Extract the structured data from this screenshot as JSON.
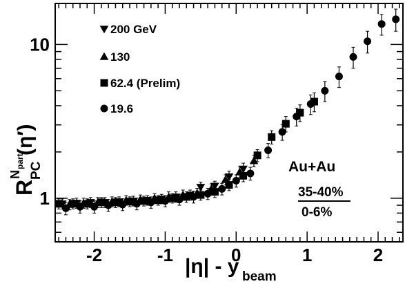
{
  "chart_data": {
    "type": "scatter",
    "title": "",
    "xlabel": "|η| - y",
    "xlabel_sub": "beam",
    "ylabel": "R",
    "ylabel_sub": "PC",
    "ylabel_sup": "N",
    "ylabel_sup_sub": "part",
    "ylabel_arg": "(η′)",
    "xlim": [
      -2.55,
      2.35
    ],
    "ylim": [
      0.52,
      18.5
    ],
    "yscale": "log",
    "grid": false,
    "legend_position": "top-left",
    "x_ticks": [
      {
        "value": -2,
        "label": "-2"
      },
      {
        "value": -1,
        "label": "-1"
      },
      {
        "value": 0,
        "label": "0"
      },
      {
        "value": 1,
        "label": "1"
      },
      {
        "value": 2,
        "label": "2"
      }
    ],
    "y_ticks": [
      {
        "value": 1,
        "label": "1"
      },
      {
        "value": 10,
        "label": "10"
      }
    ],
    "annotations": {
      "system": "Au+Au",
      "numerator": "35-40%",
      "denominator": "0-6%"
    },
    "series": [
      {
        "name": "200 GeV",
        "marker": "triangle-down",
        "points": [
          {
            "x": -2.45,
            "y": 0.92,
            "err": 0.07
          },
          {
            "x": -2.25,
            "y": 0.93,
            "err": 0.07
          },
          {
            "x": -2.05,
            "y": 0.94,
            "err": 0.07
          },
          {
            "x": -1.85,
            "y": 0.94,
            "err": 0.07
          },
          {
            "x": -1.65,
            "y": 0.95,
            "err": 0.07
          },
          {
            "x": -1.45,
            "y": 0.96,
            "err": 0.07
          },
          {
            "x": -1.25,
            "y": 0.97,
            "err": 0.07
          },
          {
            "x": -1.05,
            "y": 0.99,
            "err": 0.07
          },
          {
            "x": -0.85,
            "y": 1.02,
            "err": 0.08
          },
          {
            "x": -0.65,
            "y": 1.05,
            "err": 0.08
          },
          {
            "x": -0.5,
            "y": 1.18,
            "err": 0.09
          },
          {
            "x": -0.3,
            "y": 1.2,
            "err": 0.09
          },
          {
            "x": -0.1,
            "y": 1.38,
            "err": 0.12
          },
          {
            "x": 0.1,
            "y": 1.55,
            "err": 0.14
          }
        ]
      },
      {
        "name": "130",
        "marker": "triangle-up",
        "points": [
          {
            "x": -2.35,
            "y": 0.91,
            "err": 0.07
          },
          {
            "x": -2.15,
            "y": 0.93,
            "err": 0.07
          },
          {
            "x": -1.95,
            "y": 0.94,
            "err": 0.07
          },
          {
            "x": -1.75,
            "y": 0.95,
            "err": 0.07
          },
          {
            "x": -1.55,
            "y": 0.97,
            "err": 0.07
          },
          {
            "x": -1.35,
            "y": 0.98,
            "err": 0.07
          },
          {
            "x": -1.15,
            "y": 1.0,
            "err": 0.07
          },
          {
            "x": -0.95,
            "y": 1.02,
            "err": 0.08
          },
          {
            "x": -0.75,
            "y": 1.05,
            "err": 0.08
          },
          {
            "x": -0.55,
            "y": 1.08,
            "err": 0.08
          },
          {
            "x": -0.35,
            "y": 1.15,
            "err": 0.09
          },
          {
            "x": -0.15,
            "y": 1.32,
            "err": 0.1
          },
          {
            "x": 0.05,
            "y": 1.48,
            "err": 0.12
          },
          {
            "x": 0.25,
            "y": 1.75,
            "err": 0.15
          }
        ]
      },
      {
        "name": "62.4 (Prelim)",
        "marker": "square",
        "points": [
          {
            "x": -2.5,
            "y": 0.92,
            "err": 0.07
          },
          {
            "x": -2.3,
            "y": 0.92,
            "err": 0.07
          },
          {
            "x": -2.1,
            "y": 0.92,
            "err": 0.07
          },
          {
            "x": -1.9,
            "y": 0.94,
            "err": 0.07
          },
          {
            "x": -1.7,
            "y": 0.94,
            "err": 0.07
          },
          {
            "x": -1.5,
            "y": 0.95,
            "err": 0.07
          },
          {
            "x": -1.3,
            "y": 0.96,
            "err": 0.07
          },
          {
            "x": -1.1,
            "y": 0.97,
            "err": 0.07
          },
          {
            "x": -0.9,
            "y": 1.0,
            "err": 0.07
          },
          {
            "x": -0.7,
            "y": 1.02,
            "err": 0.08
          },
          {
            "x": -0.5,
            "y": 1.05,
            "err": 0.08
          },
          {
            "x": -0.3,
            "y": 1.1,
            "err": 0.09
          },
          {
            "x": -0.1,
            "y": 1.22,
            "err": 0.1
          },
          {
            "x": 0.1,
            "y": 1.4,
            "err": 0.12
          },
          {
            "x": 0.3,
            "y": 1.9,
            "err": 0.17
          },
          {
            "x": 0.5,
            "y": 2.5,
            "err": 0.25
          },
          {
            "x": 0.7,
            "y": 3.05,
            "err": 0.35
          },
          {
            "x": 0.9,
            "y": 3.6,
            "err": 0.45
          },
          {
            "x": 1.1,
            "y": 4.25,
            "err": 0.6
          }
        ]
      },
      {
        "name": "19.6",
        "marker": "circle",
        "points": [
          {
            "x": -2.4,
            "y": 0.86,
            "err": 0.08
          },
          {
            "x": -2.2,
            "y": 0.88,
            "err": 0.08
          },
          {
            "x": -2.0,
            "y": 0.88,
            "err": 0.08
          },
          {
            "x": -1.8,
            "y": 0.9,
            "err": 0.08
          },
          {
            "x": -1.6,
            "y": 0.91,
            "err": 0.08
          },
          {
            "x": -1.4,
            "y": 0.92,
            "err": 0.08
          },
          {
            "x": -1.2,
            "y": 0.94,
            "err": 0.08
          },
          {
            "x": -1.0,
            "y": 0.96,
            "err": 0.08
          },
          {
            "x": -0.8,
            "y": 0.98,
            "err": 0.08
          },
          {
            "x": -0.6,
            "y": 1.02,
            "err": 0.09
          },
          {
            "x": -0.4,
            "y": 1.07,
            "err": 0.09
          },
          {
            "x": -0.2,
            "y": 1.15,
            "err": 0.1
          },
          {
            "x": 0.0,
            "y": 1.3,
            "err": 0.12
          },
          {
            "x": 0.2,
            "y": 1.45,
            "err": 0.14
          },
          {
            "x": 0.45,
            "y": 2.05,
            "err": 0.22
          },
          {
            "x": 0.65,
            "y": 2.7,
            "err": 0.32
          },
          {
            "x": 0.85,
            "y": 3.4,
            "err": 0.45
          },
          {
            "x": 1.05,
            "y": 4.1,
            "err": 0.6
          },
          {
            "x": 1.25,
            "y": 5.0,
            "err": 0.75
          },
          {
            "x": 1.45,
            "y": 6.2,
            "err": 0.95
          },
          {
            "x": 1.65,
            "y": 8.3,
            "err": 1.3
          },
          {
            "x": 1.85,
            "y": 10.5,
            "err": 1.7
          },
          {
            "x": 2.05,
            "y": 13.6,
            "err": 2.1
          },
          {
            "x": 2.25,
            "y": 14.6,
            "err": 2.4
          }
        ]
      }
    ]
  }
}
